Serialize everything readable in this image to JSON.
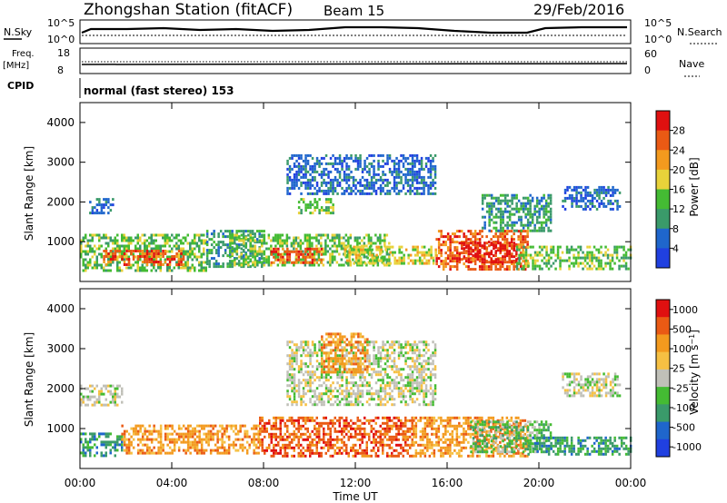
{
  "header": {
    "title": "Zhongshan Station (fitACF)",
    "beam": "Beam 15",
    "date": "29/Feb/2016"
  },
  "strips": {
    "nsky": {
      "label": "N.Sky",
      "top_tick": "10^5",
      "bottom_tick": "10^0"
    },
    "nsearch": {
      "label": "N.Search",
      "top_tick": "10^5",
      "bottom_tick": "10^0"
    },
    "freq": {
      "label_line1": "Freq.",
      "label_line2": "[MHz]",
      "top_tick": "18",
      "bottom_tick": "8"
    },
    "nave": {
      "label": "Nave",
      "top_tick": "60",
      "bottom_tick": "0"
    },
    "cpid": {
      "label": "CPID",
      "value": "normal (fast stereo) 153"
    }
  },
  "colors": {
    "power": [
      "#2040e0",
      "#1f66cc",
      "#3a9a6a",
      "#44bb33",
      "#e8d23a",
      "#f39a1e",
      "#ea5a14",
      "#e01010"
    ],
    "velocity": [
      "#e01010",
      "#ea5a14",
      "#f39a1e",
      "#f6c043",
      "#c0c0b8",
      "#44bb33",
      "#3a9a6a",
      "#1f66cc",
      "#2040e0"
    ]
  },
  "chart_data": [
    {
      "type": "heatmap",
      "name": "power",
      "ylabel": "Slant Range [km]",
      "ylim": [
        0,
        4500
      ],
      "yticks": [
        1000,
        2000,
        3000,
        4000
      ],
      "xlim": [
        0,
        24
      ],
      "xticks": [
        0,
        4,
        8,
        12,
        16,
        20,
        24
      ],
      "xticklabels": [
        "00:00",
        "04:00",
        "08:00",
        "12:00",
        "16:00",
        "20:00",
        "00:00"
      ],
      "colorbar": {
        "label": "Power [dB]",
        "ticks": [
          "4",
          "8",
          "12",
          "16",
          "20",
          "24",
          "28"
        ]
      },
      "regions": [
        {
          "t0": 0.4,
          "t1": 1.4,
          "r0": 1700,
          "r1": 2100,
          "level": 1
        },
        {
          "t0": 0.0,
          "t1": 5.5,
          "r0": 300,
          "r1": 1200,
          "level": 3
        },
        {
          "t0": 1.0,
          "t1": 4.5,
          "r0": 450,
          "r1": 800,
          "level": 6
        },
        {
          "t0": 5.5,
          "t1": 8.0,
          "r0": 350,
          "r1": 1300,
          "level": 2
        },
        {
          "t0": 6.5,
          "t1": 13.5,
          "r0": 400,
          "r1": 1200,
          "level": 3
        },
        {
          "t0": 8.3,
          "t1": 10.5,
          "r0": 500,
          "r1": 850,
          "level": 6
        },
        {
          "t0": 11.5,
          "t1": 15.5,
          "r0": 450,
          "r1": 900,
          "level": 4
        },
        {
          "t0": 9.0,
          "t1": 15.5,
          "r0": 2200,
          "r1": 3200,
          "level": 1
        },
        {
          "t0": 9.5,
          "t1": 11.0,
          "r0": 1700,
          "r1": 2100,
          "level": 3
        },
        {
          "t0": 15.5,
          "t1": 19.5,
          "r0": 300,
          "r1": 1300,
          "level": 6
        },
        {
          "t0": 16.5,
          "t1": 19.0,
          "r0": 500,
          "r1": 1000,
          "level": 7
        },
        {
          "t0": 19.0,
          "t1": 24.0,
          "r0": 350,
          "r1": 900,
          "level": 3
        },
        {
          "t0": 17.5,
          "t1": 20.5,
          "r0": 1300,
          "r1": 2200,
          "level": 2
        },
        {
          "t0": 21.0,
          "t1": 23.5,
          "r0": 1800,
          "r1": 2400,
          "level": 1
        }
      ]
    },
    {
      "type": "heatmap",
      "name": "velocity",
      "ylabel": "Slant Range [km]",
      "ylim": [
        0,
        4500
      ],
      "yticks": [
        1000,
        2000,
        3000,
        4000
      ],
      "xlim": [
        0,
        24
      ],
      "xticks": [
        0,
        4,
        8,
        12,
        16,
        20,
        24
      ],
      "xticklabels": [
        "00:00",
        "04:00",
        "08:00",
        "12:00",
        "16:00",
        "20:00",
        "00:00"
      ],
      "xlabel": "Time UT",
      "colorbar": {
        "label": "Velocity [m s^-1]",
        "ticks": [
          "1000",
          "500",
          "100",
          "25",
          "-25",
          "-100",
          "-500",
          "-1000"
        ]
      },
      "regions": [
        {
          "t0": 0.0,
          "t1": 1.8,
          "r0": 1600,
          "r1": 2100,
          "level": 4
        },
        {
          "t0": 0.0,
          "t1": 1.8,
          "r0": 350,
          "r1": 900,
          "level": 6
        },
        {
          "t0": 1.8,
          "t1": 7.8,
          "r0": 350,
          "r1": 1100,
          "level": 2
        },
        {
          "t0": 7.8,
          "t1": 14.5,
          "r0": 300,
          "r1": 1300,
          "level": 1
        },
        {
          "t0": 9.0,
          "t1": 15.5,
          "r0": 1600,
          "r1": 3200,
          "level": 4
        },
        {
          "t0": 10.5,
          "t1": 12.5,
          "r0": 2400,
          "r1": 3400,
          "level": 2
        },
        {
          "t0": 14.5,
          "t1": 19.5,
          "r0": 300,
          "r1": 1300,
          "level": 2
        },
        {
          "t0": 17.0,
          "t1": 20.5,
          "r0": 400,
          "r1": 1200,
          "level": 5
        },
        {
          "t0": 19.5,
          "t1": 24.0,
          "r0": 350,
          "r1": 800,
          "level": 6
        },
        {
          "t0": 21.0,
          "t1": 23.5,
          "r0": 1800,
          "r1": 2400,
          "level": 4
        }
      ]
    }
  ]
}
